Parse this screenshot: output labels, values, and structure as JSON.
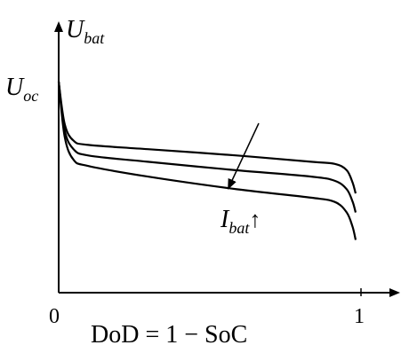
{
  "chart_data": {
    "type": "line",
    "axes": {
      "y_symbol": "U",
      "y_subscript": "bat",
      "x_label": "DoD = 1 − SoC",
      "x_ticks": [
        "0",
        "1"
      ],
      "xlim": [
        0,
        1
      ]
    },
    "annotations": {
      "start_symbol": "U",
      "start_subscript": "oc",
      "arrow_symbol": "I",
      "arrow_subscript": "bat",
      "arrow_mark": "↑"
    },
    "grid": false,
    "series": [
      {
        "x": [
          0,
          0.02,
          0.05,
          0.1,
          0.3,
          0.6,
          0.85,
          0.93,
          0.97,
          0.99,
          1.0
        ],
        "y": [
          1.0,
          0.8,
          0.72,
          0.7,
          0.68,
          0.65,
          0.62,
          0.61,
          0.58,
          0.52,
          0.47
        ]
      },
      {
        "x": [
          0,
          0.02,
          0.05,
          0.1,
          0.3,
          0.6,
          0.85,
          0.93,
          0.97,
          0.99,
          1.0
        ],
        "y": [
          1.0,
          0.77,
          0.68,
          0.65,
          0.62,
          0.58,
          0.55,
          0.53,
          0.49,
          0.43,
          0.38
        ]
      },
      {
        "x": [
          0,
          0.02,
          0.05,
          0.1,
          0.3,
          0.6,
          0.85,
          0.93,
          0.97,
          0.99,
          1.0
        ],
        "y": [
          1.0,
          0.74,
          0.63,
          0.6,
          0.55,
          0.49,
          0.45,
          0.43,
          0.38,
          0.31,
          0.25
        ]
      }
    ]
  }
}
